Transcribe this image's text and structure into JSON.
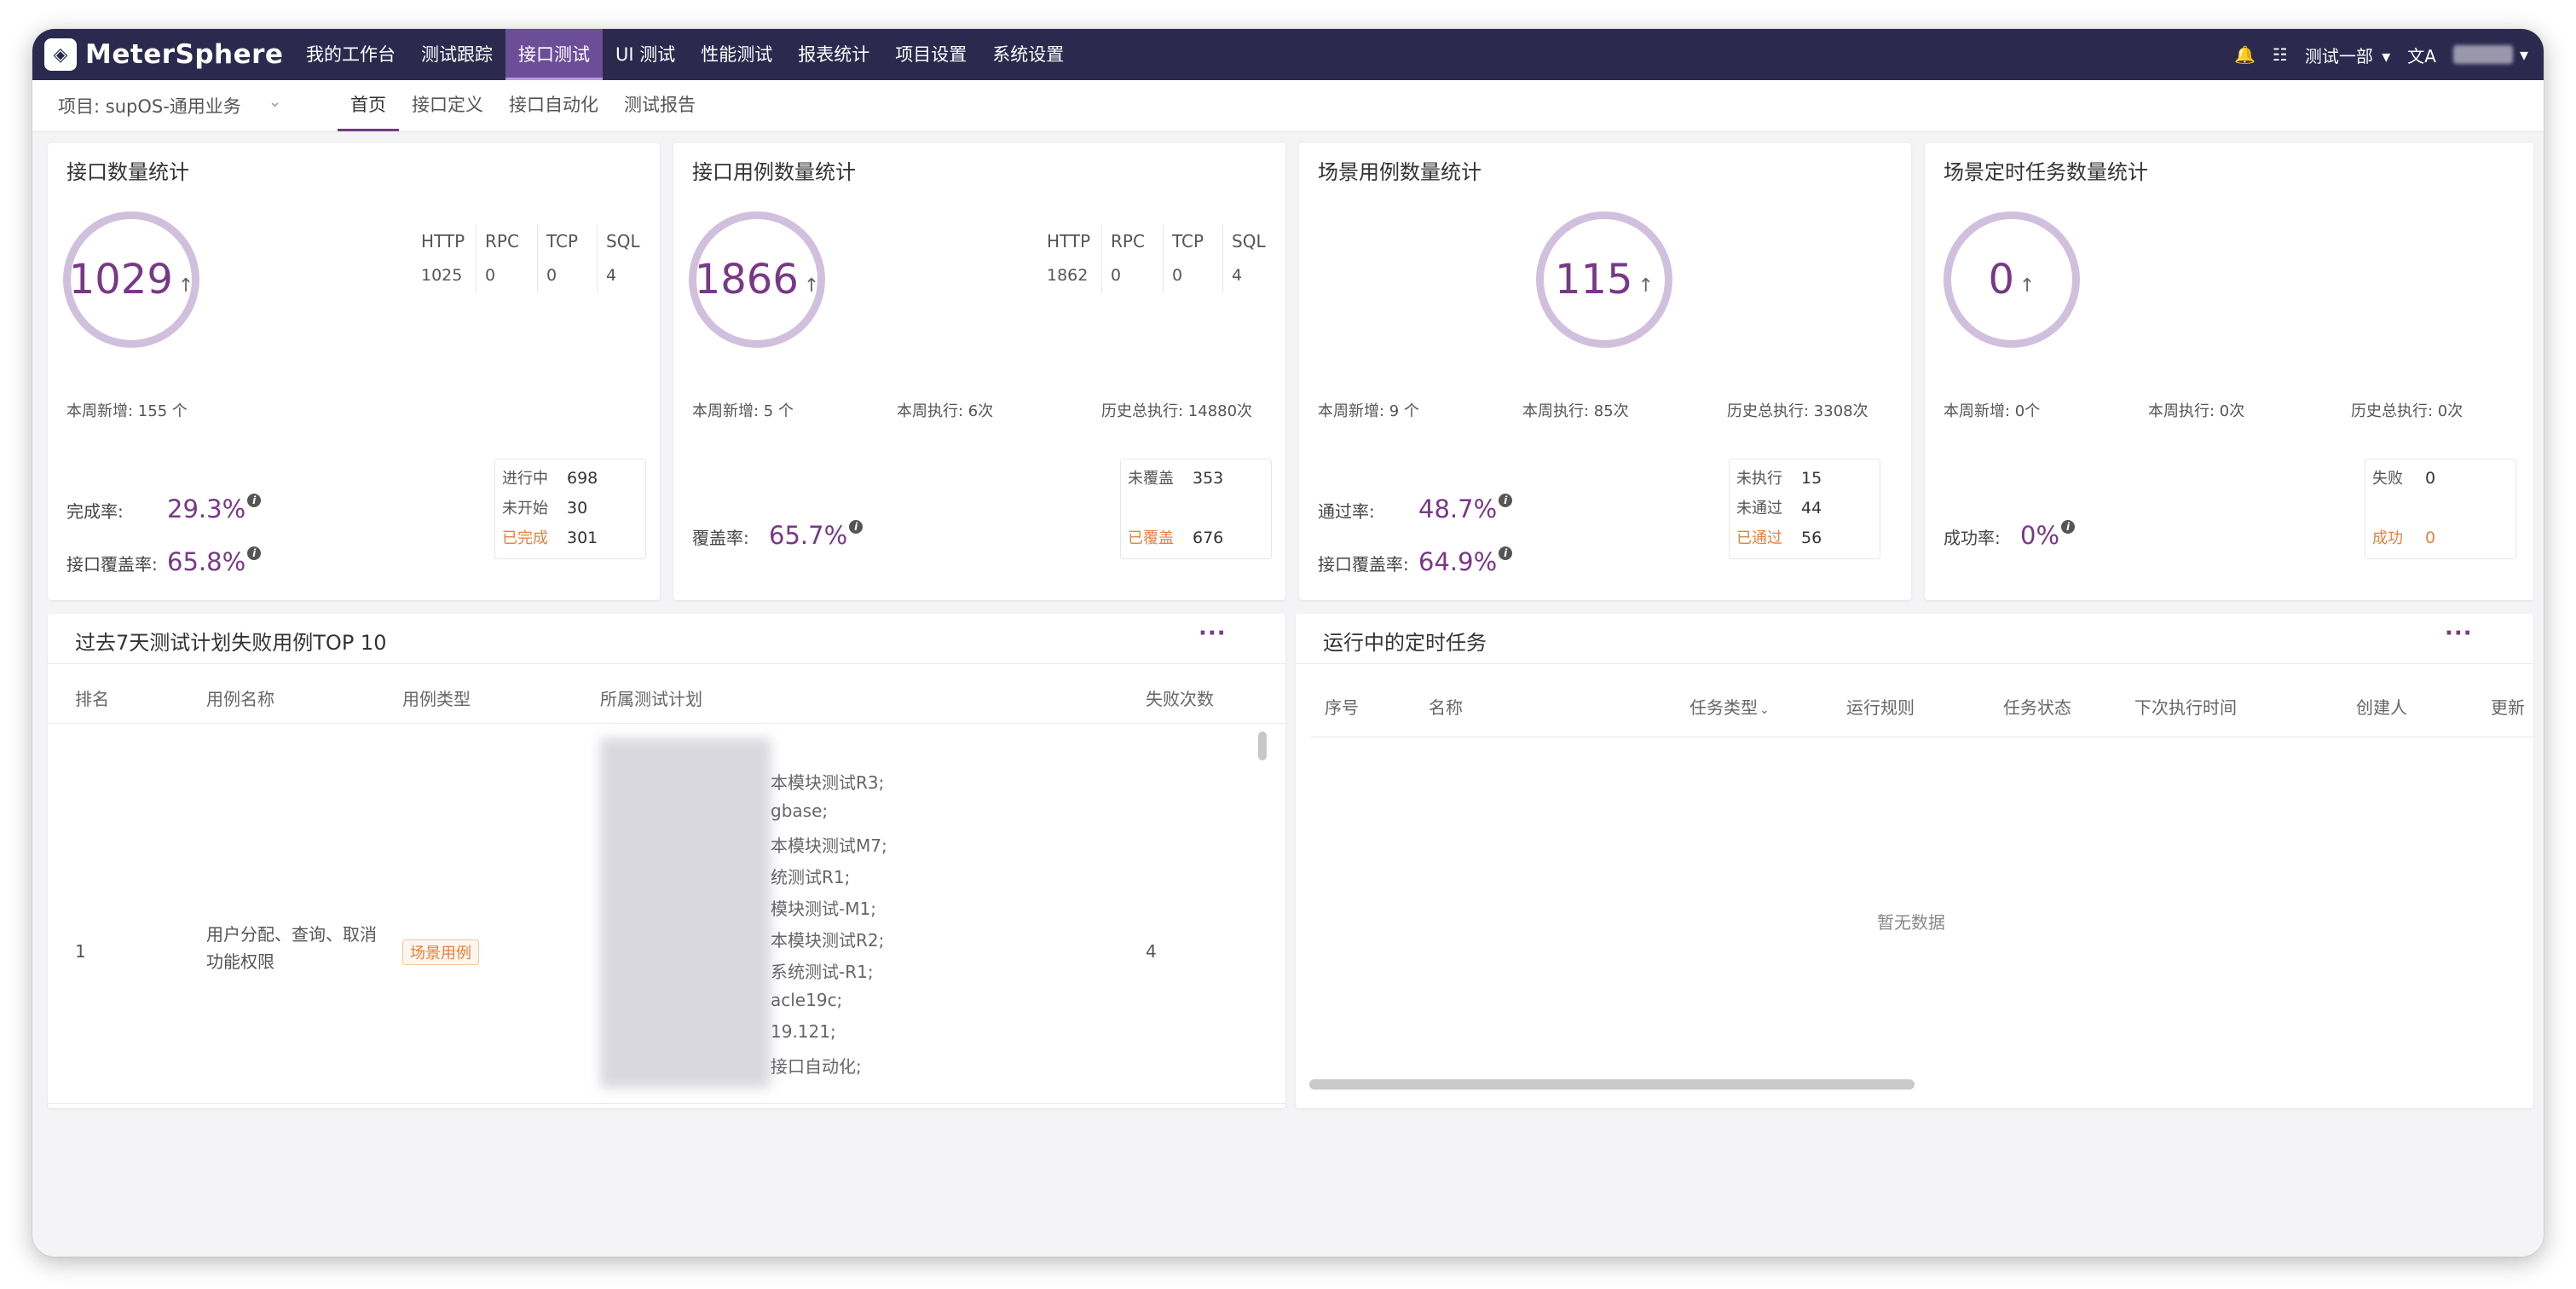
{
  "brand": {
    "name": "MeterSphere"
  },
  "nav": {
    "items": [
      "我的工作台",
      "测试跟踪",
      "接口测试",
      "UI 测试",
      "性能测试",
      "报表统计",
      "项目设置",
      "系统设置"
    ],
    "active": "接口测试",
    "workspace": "测试一部"
  },
  "subnav": {
    "project": "项目: supOS-通用业务",
    "tabs": [
      "首页",
      "接口定义",
      "接口自动化",
      "测试报告"
    ],
    "active": "首页"
  },
  "cards": {
    "api": {
      "title": "接口数量统计",
      "total": "1029",
      "types": {
        "headers": [
          "HTTP",
          "RPC",
          "TCP",
          "SQL"
        ],
        "values": [
          "1025",
          "0",
          "0",
          "4"
        ]
      },
      "week_new": "本周新增: 155 个",
      "rate1_label": "完成率:",
      "rate1_value": "29.3%",
      "rate2_label": "接口覆盖率:",
      "rate2_value": "65.8%",
      "box": [
        {
          "k": "进行中",
          "v": "698"
        },
        {
          "k": "未开始",
          "v": "30"
        },
        {
          "k": "已完成",
          "v": "301"
        }
      ]
    },
    "apicase": {
      "title": "接口用例数量统计",
      "total": "1866",
      "types": {
        "headers": [
          "HTTP",
          "RPC",
          "TCP",
          "SQL"
        ],
        "values": [
          "1862",
          "0",
          "0",
          "4"
        ]
      },
      "week_new": "本周新增: 5 个",
      "week_exec": "本周执行: 6次",
      "hist_exec": "历史总执行: 14880次",
      "rate1_label": "覆盖率:",
      "rate1_value": "65.7%",
      "box": [
        {
          "k": "未覆盖",
          "v": "353"
        },
        {
          "k": "已覆盖",
          "v": "676"
        }
      ]
    },
    "scenario": {
      "title": "场景用例数量统计",
      "total": "115",
      "week_new": "本周新增: 9 个",
      "week_exec": "本周执行: 85次",
      "hist_exec": "历史总执行: 3308次",
      "rate1_label": "通过率:",
      "rate1_value": "48.7%",
      "rate2_label": "接口覆盖率:",
      "rate2_value": "64.9%",
      "box": [
        {
          "k": "未执行",
          "v": "15"
        },
        {
          "k": "未通过",
          "v": "44"
        },
        {
          "k": "已通过",
          "v": "56"
        }
      ]
    },
    "schedule": {
      "title": "场景定时任务数量统计",
      "total": "0",
      "week_new": "本周新增: 0个",
      "week_exec": "本周执行: 0次",
      "hist_exec": "历史总执行: 0次",
      "rate1_label": "成功率:",
      "rate1_value": "0%",
      "box": [
        {
          "k": "失败",
          "v": "0"
        },
        {
          "k": "成功",
          "v": "0"
        }
      ]
    }
  },
  "failTop": {
    "title": "过去7天测试计划失败用例TOP 10",
    "more": "···",
    "columns": [
      "排名",
      "用例名称",
      "用例类型",
      "所属测试计划",
      "失败次数"
    ],
    "row": {
      "rank": "1",
      "name": "用户分配、查询、取消功能权限",
      "type": "场景用例",
      "count": "4",
      "plans": [
        "本模块测试R3;",
        "gbase;",
        "本模块测试M7;",
        "统测试R1;",
        "模块测试-M1;",
        "本模块测试R2;",
        "系统测试-R1;",
        "acle19c;",
        "19.121;",
        "接口自动化;"
      ]
    }
  },
  "running": {
    "title": "运行中的定时任务",
    "more": "···",
    "columns": [
      "序号",
      "名称",
      "任务类型",
      "运行规则",
      "任务状态",
      "下次执行时间",
      "创建人",
      "更新"
    ],
    "empty": "暂无数据"
  },
  "icons": [
    "bell-icon",
    "task-list-icon",
    "chevron-down-icon",
    "language-icon",
    "info-icon",
    "arrow-up-icon"
  ],
  "colors": {
    "nav_bg": "#2b2a4e",
    "accent": "#783887",
    "ring": "#d1c0dd",
    "warning": "#e6813d"
  }
}
